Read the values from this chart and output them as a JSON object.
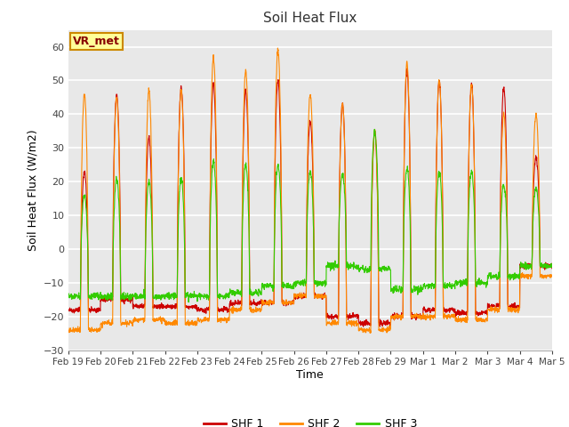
{
  "title": "Soil Heat Flux",
  "xlabel": "Time",
  "ylabel": "Soil Heat Flux (W/m2)",
  "ylim": [
    -30,
    65
  ],
  "yticks": [
    -30,
    -20,
    -10,
    0,
    10,
    20,
    30,
    40,
    50,
    60
  ],
  "fig_bg_color": "#ffffff",
  "plot_bg_color": "#e8e8e8",
  "shf1_color": "#cc0000",
  "shf2_color": "#ff8800",
  "shf3_color": "#33cc00",
  "legend_label1": "SHF 1",
  "legend_label2": "SHF 2",
  "legend_label3": "SHF 3",
  "annotation": "VR_met",
  "x_tick_labels": [
    "Feb 19",
    "Feb 20",
    "Feb 21",
    "Feb 22",
    "Feb 23",
    "Feb 24",
    "Feb 25",
    "Feb 26",
    "Feb 27",
    "Feb 28",
    "Feb 29",
    "Mar 1",
    "Mar 2",
    "Mar 3",
    "Mar 4",
    "Mar 5"
  ],
  "n_days": 15,
  "pts_per_day": 144
}
